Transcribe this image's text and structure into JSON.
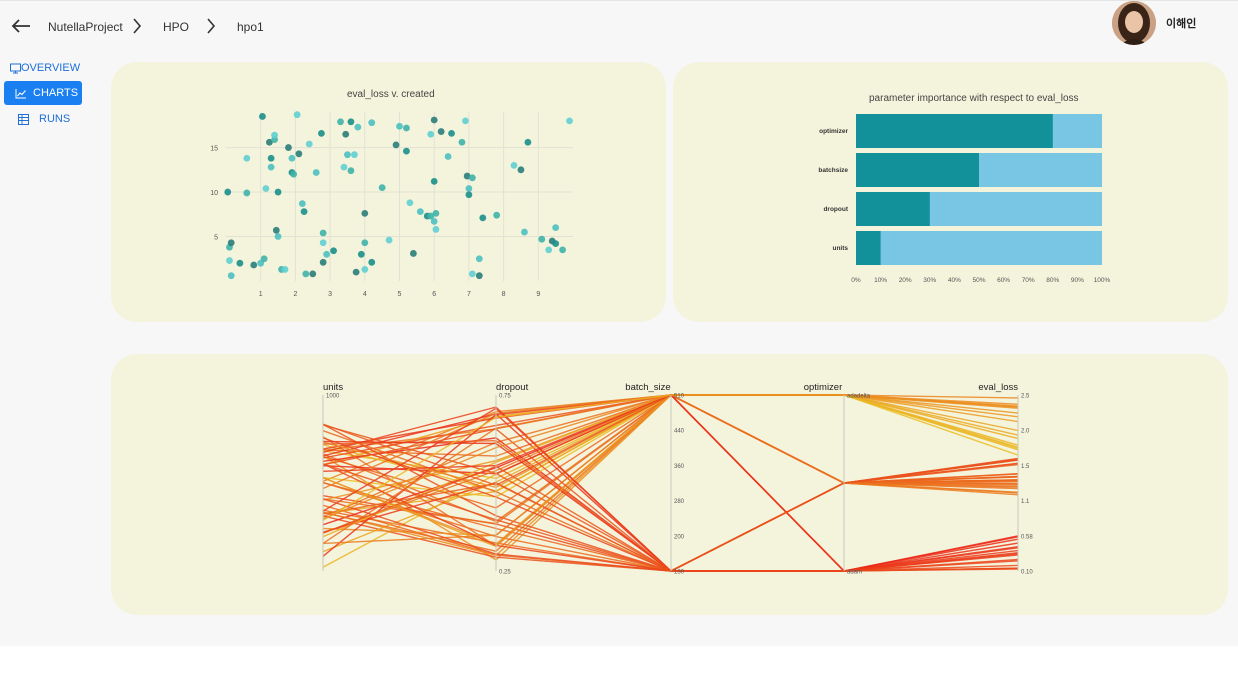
{
  "breadcrumb": [
    "NutellaProject",
    "HPO",
    "hpo1"
  ],
  "user": {
    "name": "이해인"
  },
  "nav": [
    {
      "label": "OVERVIEW",
      "icon": "monitor-icon"
    },
    {
      "label": "CHARTS",
      "icon": "line-chart-icon",
      "active": true
    },
    {
      "label": "RUNS",
      "icon": "table-icon"
    }
  ],
  "colors": {
    "accent": "#1a7ff0",
    "card": "#f4f4dd",
    "teal_dark": "#13919a",
    "teal_light": "#78c6e3"
  },
  "chart_data": [
    {
      "type": "scatter",
      "title": "eval_loss v. created",
      "xlim": [
        0,
        10
      ],
      "ylim": [
        0,
        19
      ],
      "xticks": [
        "1",
        "2",
        "3",
        "4",
        "5",
        "6",
        "7",
        "8",
        "9"
      ],
      "yticks": [
        "5",
        "10",
        "15"
      ],
      "points": [
        [
          0.05,
          10
        ],
        [
          0.1,
          3.8
        ],
        [
          0.1,
          2.3
        ],
        [
          0.15,
          4.3
        ],
        [
          0.15,
          0.6
        ],
        [
          0.4,
          2
        ],
        [
          0.6,
          9.9
        ],
        [
          0.6,
          13.8
        ],
        [
          0.8,
          1.8
        ],
        [
          1,
          2
        ],
        [
          1.05,
          18.5
        ],
        [
          1.1,
          2.5
        ],
        [
          1.15,
          10.4
        ],
        [
          1.25,
          15.6
        ],
        [
          1.3,
          12.8
        ],
        [
          1.3,
          13.8
        ],
        [
          1.4,
          15.9
        ],
        [
          1.4,
          16.4
        ],
        [
          1.45,
          5.7
        ],
        [
          1.5,
          5
        ],
        [
          1.5,
          10
        ],
        [
          1.6,
          1.3
        ],
        [
          1.7,
          1.3
        ],
        [
          1.8,
          15
        ],
        [
          1.9,
          13.8
        ],
        [
          1.9,
          12.2
        ],
        [
          1.95,
          12
        ],
        [
          2.05,
          18.7
        ],
        [
          2.1,
          14.3
        ],
        [
          2.2,
          8.7
        ],
        [
          2.25,
          7.8
        ],
        [
          2.3,
          0.8
        ],
        [
          2.4,
          15.4
        ],
        [
          2.5,
          0.8
        ],
        [
          2.6,
          12.2
        ],
        [
          2.75,
          16.6
        ],
        [
          2.8,
          5.4
        ],
        [
          2.8,
          4.3
        ],
        [
          2.8,
          2.1
        ],
        [
          2.9,
          3
        ],
        [
          3.1,
          3.4
        ],
        [
          3.3,
          17.9
        ],
        [
          3.4,
          12.8
        ],
        [
          3.45,
          16.5
        ],
        [
          3.5,
          14.2
        ],
        [
          3.6,
          17.9
        ],
        [
          3.6,
          12.4
        ],
        [
          3.7,
          14.2
        ],
        [
          3.75,
          1
        ],
        [
          3.8,
          17.3
        ],
        [
          3.9,
          3
        ],
        [
          4,
          4.3
        ],
        [
          4,
          1.3
        ],
        [
          4,
          7.6
        ],
        [
          4.2,
          17.8
        ],
        [
          4.2,
          2.1
        ],
        [
          4.5,
          10.5
        ],
        [
          4.7,
          4.6
        ],
        [
          4.9,
          15.3
        ],
        [
          5,
          17.4
        ],
        [
          5.2,
          14.6
        ],
        [
          5.2,
          17.2
        ],
        [
          5.3,
          8.8
        ],
        [
          5.4,
          3.1
        ],
        [
          5.6,
          7.8
        ],
        [
          5.8,
          7.3
        ],
        [
          5.9,
          7.3
        ],
        [
          5.9,
          16.5
        ],
        [
          6,
          18.1
        ],
        [
          6,
          6.7
        ],
        [
          6,
          11.2
        ],
        [
          6.05,
          7.6
        ],
        [
          6.05,
          5.8
        ],
        [
          6.2,
          16.8
        ],
        [
          6.4,
          14
        ],
        [
          6.5,
          16.6
        ],
        [
          6.8,
          15.6
        ],
        [
          6.9,
          18
        ],
        [
          6.95,
          11.8
        ],
        [
          7.0,
          10.4
        ],
        [
          7.0,
          9.7
        ],
        [
          7.1,
          11.6
        ],
        [
          7.1,
          0.8
        ],
        [
          7.3,
          0.6
        ],
        [
          7.3,
          2.5
        ],
        [
          7.4,
          7.1
        ],
        [
          7.8,
          7.4
        ],
        [
          8.3,
          13
        ],
        [
          8.5,
          12.5
        ],
        [
          8.6,
          5.5
        ],
        [
          8.7,
          15.6
        ],
        [
          9.1,
          4.7
        ],
        [
          9.3,
          3.5
        ],
        [
          9.4,
          4.5
        ],
        [
          9.5,
          6
        ],
        [
          9.5,
          4.2
        ],
        [
          9.7,
          3.5
        ],
        [
          9.9,
          18
        ]
      ]
    },
    {
      "type": "bar",
      "title": "parameter importance with respect to eval_loss",
      "categories": [
        "optimizer",
        "batchsize",
        "dropout",
        "units"
      ],
      "values": [
        80,
        50,
        30,
        10
      ],
      "xticks": [
        "0%",
        "10%",
        "20%",
        "30%",
        "40%",
        "50%",
        "60%",
        "70%",
        "80%",
        "90%",
        "100%"
      ],
      "xlim": [
        0,
        100
      ]
    },
    {
      "type": "parallel_coordinates",
      "axes": [
        {
          "label": "units",
          "ticks": [
            "1000",
            "",
            "",
            "",
            "",
            ""
          ]
        },
        {
          "label": "dropout",
          "ticks": [
            "0.75",
            "",
            "",
            "",
            "",
            "0.25"
          ]
        },
        {
          "label": "batch_size",
          "ticks": [
            "510",
            "440",
            "360",
            "280",
            "200",
            "130"
          ]
        },
        {
          "label": "optimizer",
          "ticks": [
            "adadelta",
            "",
            "",
            "",
            "",
            "adam"
          ]
        },
        {
          "label": "eval_loss",
          "ticks": [
            "2.5",
            "2.0",
            "1.5",
            "1.1",
            "0.58",
            "0.10"
          ]
        }
      ],
      "lines": 60
    }
  ]
}
